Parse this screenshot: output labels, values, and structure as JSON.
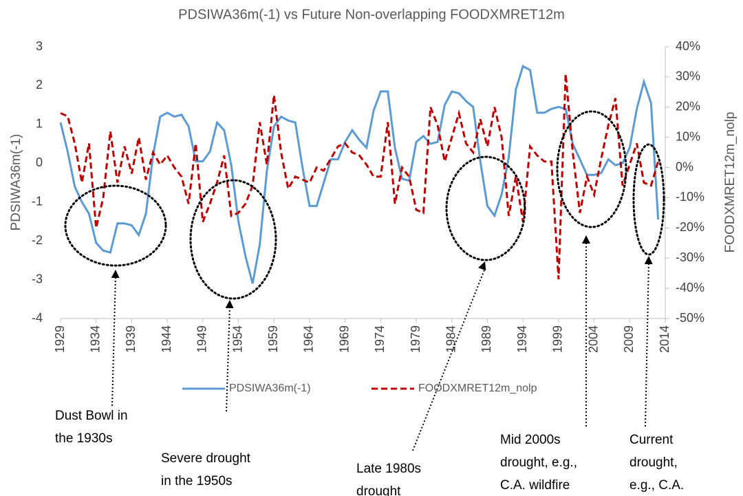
{
  "chart_data": {
    "type": "line",
    "title": "PDSIWA36m(-1) vs Future Non-overlapping  FOODXMRET12m",
    "y_label": "PDSIWA36m(-1)",
    "y2_label": "FOODXMRET12m_nolp",
    "x": [
      1929,
      1930,
      1931,
      1932,
      1933,
      1934,
      1935,
      1936,
      1937,
      1938,
      1939,
      1940,
      1941,
      1942,
      1943,
      1944,
      1945,
      1946,
      1947,
      1948,
      1949,
      1950,
      1951,
      1952,
      1953,
      1954,
      1955,
      1956,
      1957,
      1958,
      1959,
      1960,
      1961,
      1962,
      1963,
      1964,
      1965,
      1966,
      1967,
      1968,
      1969,
      1970,
      1971,
      1972,
      1973,
      1974,
      1975,
      1976,
      1977,
      1978,
      1979,
      1980,
      1981,
      1982,
      1983,
      1984,
      1985,
      1986,
      1987,
      1988,
      1989,
      1990,
      1991,
      1992,
      1993,
      1994,
      1995,
      1996,
      1997,
      1998,
      1999,
      2000,
      2001,
      2002,
      2003,
      2004,
      2005,
      2006,
      2007,
      2008,
      2009,
      2010,
      2011,
      2012,
      2013
    ],
    "xlim": [
      1929,
      2014
    ],
    "xticks": [
      1929,
      1934,
      1939,
      1944,
      1949,
      1954,
      1959,
      1964,
      1969,
      1974,
      1979,
      1984,
      1989,
      1994,
      1999,
      2004,
      2009,
      2014
    ],
    "ylim": [
      -4,
      3
    ],
    "yticks": [
      3,
      2,
      1,
      0,
      -1,
      -2,
      -3,
      -4
    ],
    "y2lim": [
      -50,
      40
    ],
    "y2ticks": [
      {
        "value": 40,
        "label": "40%"
      },
      {
        "value": 30,
        "label": "30%"
      },
      {
        "value": 20,
        "label": "20%"
      },
      {
        "value": 10,
        "label": "10%"
      },
      {
        "value": 0,
        "label": "0%"
      },
      {
        "value": -10,
        "label": "-10%"
      },
      {
        "value": -20,
        "label": "-20%"
      },
      {
        "value": -30,
        "label": "-30%"
      },
      {
        "value": -40,
        "label": "-40%"
      },
      {
        "value": -50,
        "label": "-50%"
      }
    ],
    "series": [
      {
        "name": "PDSIWA36m(-1)",
        "color": "#5b9bd5",
        "values": [
          1.05,
          0.3,
          -0.6,
          -1.0,
          -1.3,
          -2.05,
          -2.25,
          -2.3,
          -1.55,
          -1.55,
          -1.6,
          -1.85,
          -1.3,
          0.2,
          1.2,
          1.3,
          1.2,
          1.25,
          0.95,
          0.05,
          0.05,
          0.3,
          1.05,
          0.85,
          -0.05,
          -1.5,
          -2.4,
          -3.1,
          -2.1,
          -0.2,
          0.95,
          1.2,
          1.1,
          1.05,
          -0.1,
          -1.1,
          -1.1,
          -0.5,
          0.1,
          0.1,
          0.55,
          0.85,
          0.6,
          0.4,
          1.35,
          1.85,
          1.85,
          0.4,
          -0.4,
          -0.45,
          0.55,
          0.7,
          0.5,
          0.55,
          1.5,
          1.85,
          1.8,
          1.6,
          1.45,
          0.05,
          -1.1,
          -1.35,
          -0.8,
          0.15,
          1.9,
          2.5,
          2.4,
          1.3,
          1.3,
          1.4,
          1.45,
          1.4,
          0.5,
          0.1,
          -0.3,
          -0.3,
          -0.25,
          0.1,
          -0.05,
          0.0,
          0.4,
          1.4,
          2.1,
          1.55,
          -1.45
        ]
      },
      {
        "name": "FOODXMRET12m_nolp",
        "color": "#c00000",
        "axis": "y2",
        "values": [
          18,
          17,
          8,
          -5,
          8,
          -20,
          -10,
          12,
          -5,
          7,
          -2,
          10,
          -4,
          5,
          1,
          4,
          0,
          -3,
          -12,
          8,
          -18,
          -12,
          -5,
          4,
          -16,
          -15,
          -12,
          -6,
          15,
          1,
          24,
          5,
          -7,
          -3,
          -4,
          -5,
          0,
          -1,
          3,
          7,
          8,
          5,
          4,
          1,
          -3,
          -3,
          15,
          -12,
          0,
          -3,
          -14,
          -15,
          20,
          14,
          2,
          10,
          18,
          8,
          5,
          16,
          7,
          20,
          10,
          -16,
          -3,
          -18,
          7,
          4,
          2,
          2,
          -37,
          31,
          5,
          -15,
          -3,
          -9,
          3,
          14,
          23,
          -6,
          1,
          8,
          -5,
          -6,
          2
        ]
      }
    ],
    "annotations": [
      [
        "Dust Bowl in",
        "the 1930s"
      ],
      [
        "Severe drought",
        "in the 1950s"
      ],
      [
        "Late 1980s",
        "drought"
      ],
      [
        "Mid 2000s",
        "drought, e.g.,",
        "C.A. wildfire"
      ],
      [
        "Current",
        "drought,",
        "e.g., C.A."
      ]
    ]
  }
}
